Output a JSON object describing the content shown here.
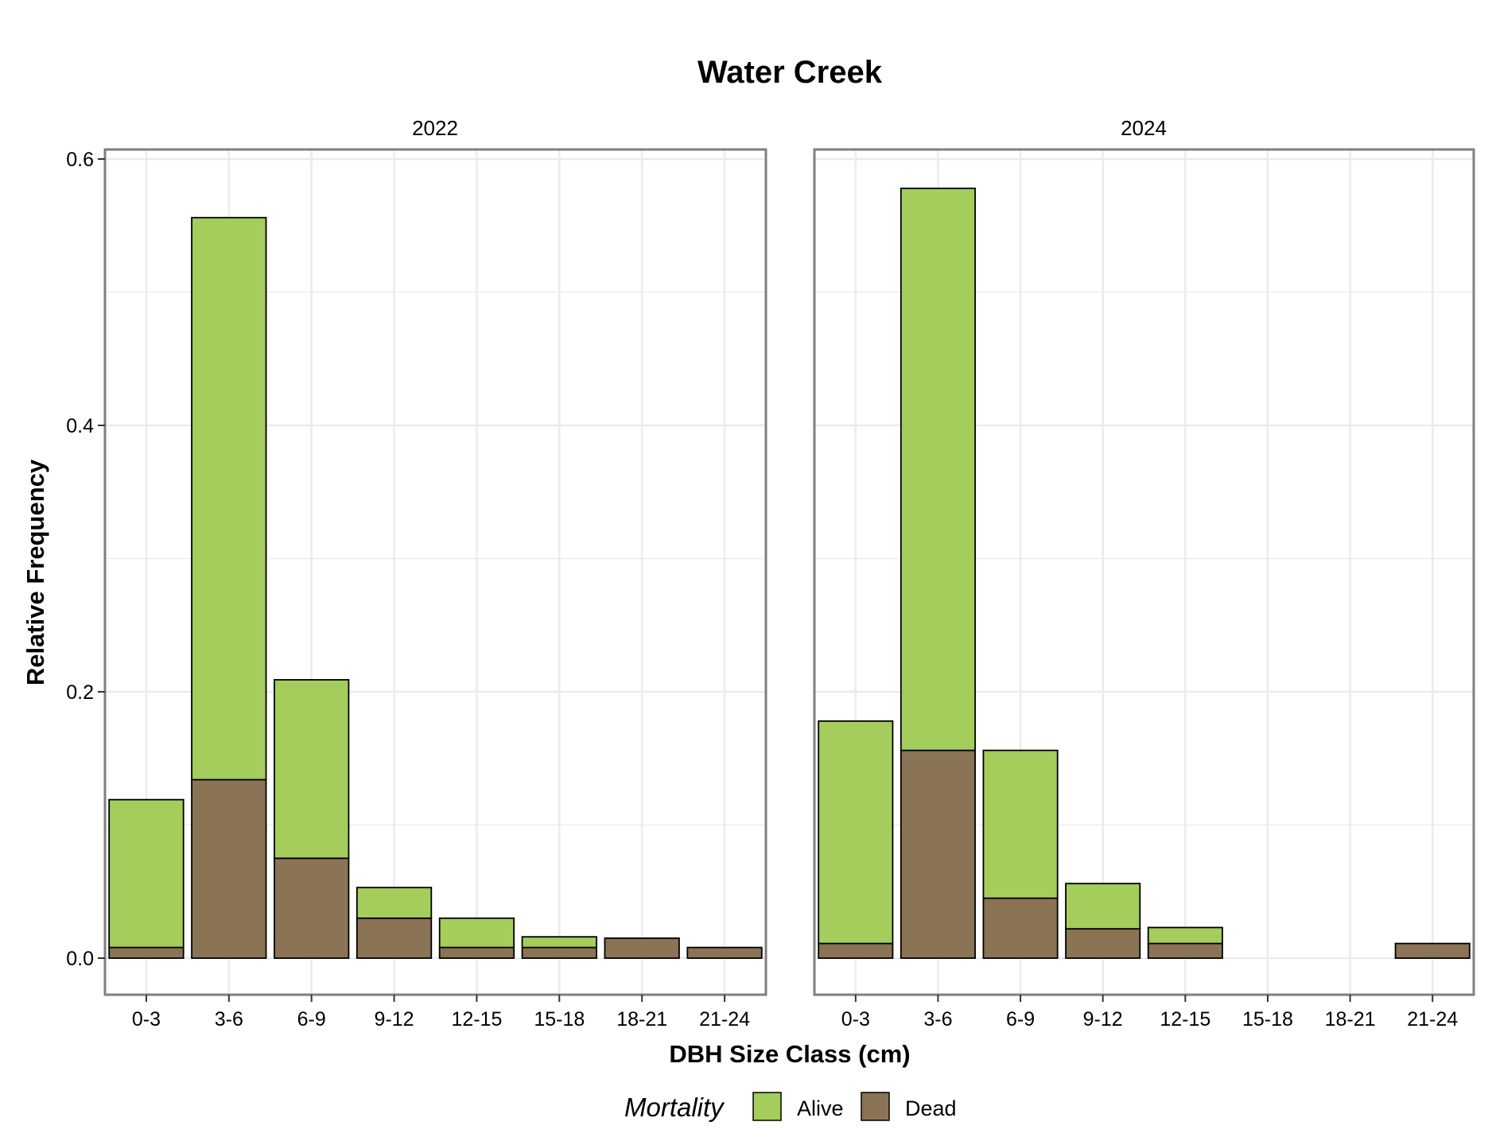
{
  "chart_data": {
    "type": "bar",
    "stacked": true,
    "title": "Water Creek",
    "xlabel": "DBH Size Class (cm)",
    "ylabel": "Relative Frequency",
    "ylim": [
      0,
      0.6
    ],
    "yticks": [
      "0.0",
      "0.2",
      "0.4",
      "0.6"
    ],
    "grid": true,
    "categories": [
      "0-3",
      "3-6",
      "6-9",
      "9-12",
      "12-15",
      "15-18",
      "18-21",
      "21-24"
    ],
    "legend": {
      "title": "Mortality",
      "position": "bottom",
      "items": [
        {
          "name": "Alive",
          "color": "#a4cd5c"
        },
        {
          "name": "Dead",
          "color": "#8b7355"
        }
      ]
    },
    "panels": [
      {
        "label": "2022",
        "series": [
          {
            "name": "Dead",
            "values": [
              0.008,
              0.134,
              0.075,
              0.03,
              0.008,
              0.008,
              0.015,
              0.008
            ]
          },
          {
            "name": "Alive",
            "values": [
              0.111,
              0.422,
              0.134,
              0.023,
              0.022,
              0.008,
              0.0,
              0.0
            ]
          }
        ]
      },
      {
        "label": "2024",
        "series": [
          {
            "name": "Dead",
            "values": [
              0.011,
              0.156,
              0.045,
              0.022,
              0.011,
              0.0,
              0.0,
              0.011
            ]
          },
          {
            "name": "Alive",
            "values": [
              0.167,
              0.422,
              0.111,
              0.034,
              0.012,
              0.0,
              0.0,
              0.0
            ]
          }
        ]
      }
    ]
  }
}
